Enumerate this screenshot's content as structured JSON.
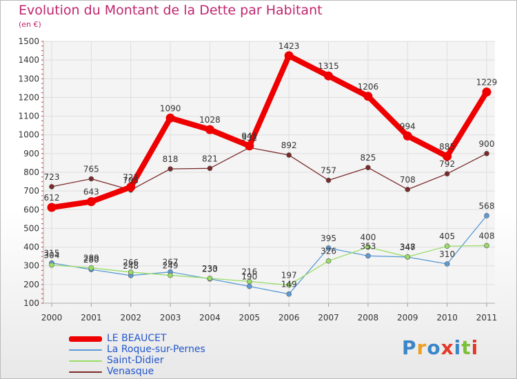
{
  "title": "Evolution du Montant de la Dette par Habitant",
  "subtitle": "(en €)",
  "logo": "Proxiti",
  "chart_data": {
    "type": "line",
    "x": [
      "2000",
      "2001",
      "2002",
      "2003",
      "2004",
      "2005",
      "2006",
      "2007",
      "2008",
      "2009",
      "2010",
      "2011"
    ],
    "ylim": [
      100,
      1500
    ],
    "yticks": [
      100,
      200,
      300,
      400,
      500,
      600,
      700,
      800,
      900,
      1000,
      1100,
      1200,
      1300,
      1400,
      1500
    ],
    "grid": true,
    "legend_placement": "bottom-left",
    "series": [
      {
        "name": "LE BEAUCET",
        "color": "#ee0000",
        "values": [
          612,
          643,
          721,
          1090,
          1028,
          941,
          1423,
          1315,
          1206,
          994,
          885,
          1229
        ]
      },
      {
        "name": "La Roque-sur-Pernes",
        "color": "#5b9bd5",
        "values": [
          315,
          280,
          248,
          267,
          230,
          190,
          149,
          395,
          353,
          347,
          310,
          568
        ]
      },
      {
        "name": "Saint-Didier",
        "color": "#99dd66",
        "values": [
          304,
          289,
          266,
          249,
          233,
          216,
          197,
          326,
          400,
          348,
          405,
          408
        ]
      },
      {
        "name": "Venasque",
        "color": "#7a2a2a",
        "values": [
          723,
          765,
          705,
          818,
          821,
          932,
          892,
          757,
          825,
          708,
          792,
          900
        ]
      }
    ]
  }
}
